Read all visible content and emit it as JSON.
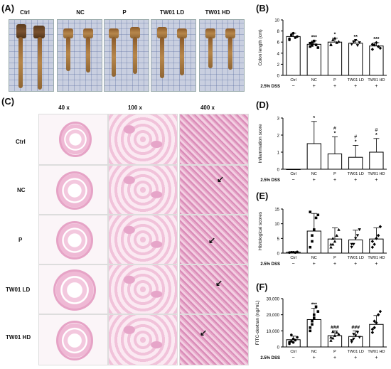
{
  "panel_letters": {
    "a": "(A)",
    "b": "(B)",
    "c": "(C)",
    "d": "(D)",
    "e": "(E)",
    "f": "(F)"
  },
  "photo_groups": [
    "Ctrl",
    "NC",
    "P",
    "TW01 LD",
    "TW01 HD"
  ],
  "magnifications": [
    "40 x",
    "100 x",
    "400 x"
  ],
  "histo_rows": [
    "Ctrl",
    "NC",
    "P",
    "TW01 LD",
    "TW01 HD"
  ],
  "dss_label": "2.5% DSS",
  "dss_signs": [
    "−",
    "+",
    "+",
    "+",
    "+"
  ],
  "colors": {
    "bar_fill": "#ffffff",
    "bar_stroke": "#000000",
    "point": "#000000"
  },
  "chart_data": [
    {
      "id": "B",
      "type": "bar",
      "categories": [
        "Ctrl",
        "NC",
        "P",
        "TW01 LD",
        "TW01 HD"
      ],
      "values": [
        7.0,
        5.6,
        6.0,
        5.8,
        5.3
      ],
      "errors": [
        0.6,
        0.6,
        0.7,
        0.5,
        0.6
      ],
      "ylabel": "Colon length (cm)",
      "ylim": [
        0,
        10
      ],
      "yticks": [
        "0",
        "2",
        "4",
        "6",
        "8",
        "10"
      ],
      "ytick_values": [
        0,
        2,
        4,
        6,
        8,
        10
      ],
      "significance": [
        "",
        "***",
        "*",
        "**",
        "***"
      ],
      "points": [
        [
          6.6,
          7.3,
          7.6,
          6.8,
          7.0,
          6.4,
          7.2
        ],
        [
          5.2,
          5.9,
          6.2,
          5.5,
          5.0,
          5.8,
          5.4
        ],
        [
          5.5,
          6.4,
          6.7,
          5.9,
          6.1,
          5.6
        ],
        [
          5.6,
          6.0,
          6.3,
          5.4,
          5.9
        ],
        [
          4.7,
          5.5,
          5.9,
          5.2,
          4.9,
          5.6
        ]
      ],
      "grid": false
    },
    {
      "id": "D",
      "type": "bar",
      "categories": [
        "Ctrl",
        "NC",
        "P",
        "TW01 LD",
        "TW01 HD"
      ],
      "values": [
        0,
        1.5,
        0.9,
        0.7,
        1.0
      ],
      "errors": [
        0,
        1.3,
        1.0,
        0.7,
        0.8
      ],
      "ylabel": "Inflammation score",
      "ylim": [
        0,
        3
      ],
      "yticks": [
        "0",
        "1",
        "2",
        "3"
      ],
      "ytick_values": [
        0,
        1,
        2,
        3
      ],
      "significance": [
        "",
        "*",
        "*",
        "*",
        "*"
      ],
      "hash": [
        "",
        "",
        "#",
        "#",
        "#"
      ],
      "grid": false
    },
    {
      "id": "E",
      "type": "bar",
      "categories": [
        "Ctrl",
        "NC",
        "P",
        "TW01 LD",
        "TW01 HD"
      ],
      "values": [
        0.3,
        7.5,
        4.8,
        4.5,
        4.8
      ],
      "errors": [
        0.1,
        6.0,
        3.8,
        3.3,
        3.8
      ],
      "ylabel": "Histological scores",
      "ylim": [
        0,
        15
      ],
      "yticks": [
        "0",
        "5",
        "10",
        "15"
      ],
      "ytick_values": [
        0,
        5,
        10,
        15
      ],
      "points": [
        [
          0.2,
          0.3,
          0.3,
          0.2,
          0.4
        ],
        [
          2,
          4,
          8,
          12,
          13,
          14,
          6
        ],
        [
          2,
          3,
          4,
          6,
          8,
          3,
          5
        ],
        [
          2,
          3,
          5,
          6,
          8,
          3
        ],
        [
          2,
          3,
          5,
          6,
          9,
          4
        ]
      ],
      "grid": false
    },
    {
      "id": "F",
      "type": "bar",
      "categories": [
        "Ctrl",
        "NC",
        "P",
        "TW01 LD",
        "TW01 HD"
      ],
      "values": [
        4500,
        17000,
        7000,
        6500,
        14000
      ],
      "errors": [
        2200,
        7000,
        3000,
        3500,
        5500
      ],
      "ylabel": "FITC-dextran (ng/mL)",
      "ylim": [
        0,
        30000
      ],
      "yticks": [
        "0",
        "10,000",
        "20,000",
        "30,000"
      ],
      "ytick_values": [
        0,
        10000,
        20000,
        30000
      ],
      "significance": [
        "",
        "***",
        "###",
        "###",
        ""
      ],
      "points": [
        [
          2000,
          3500,
          5000,
          4200,
          6000,
          3000,
          7500,
          2800
        ],
        [
          10000,
          14000,
          20000,
          25000,
          22000,
          12000,
          16000,
          18000
        ],
        [
          4000,
          5500,
          7000,
          9000,
          8000,
          6000,
          9500
        ],
        [
          3000,
          5000,
          7000,
          9000,
          6000,
          4000,
          8000
        ],
        [
          9000,
          12000,
          15000,
          20000,
          22000,
          11000,
          16000
        ]
      ],
      "grid": false
    }
  ]
}
